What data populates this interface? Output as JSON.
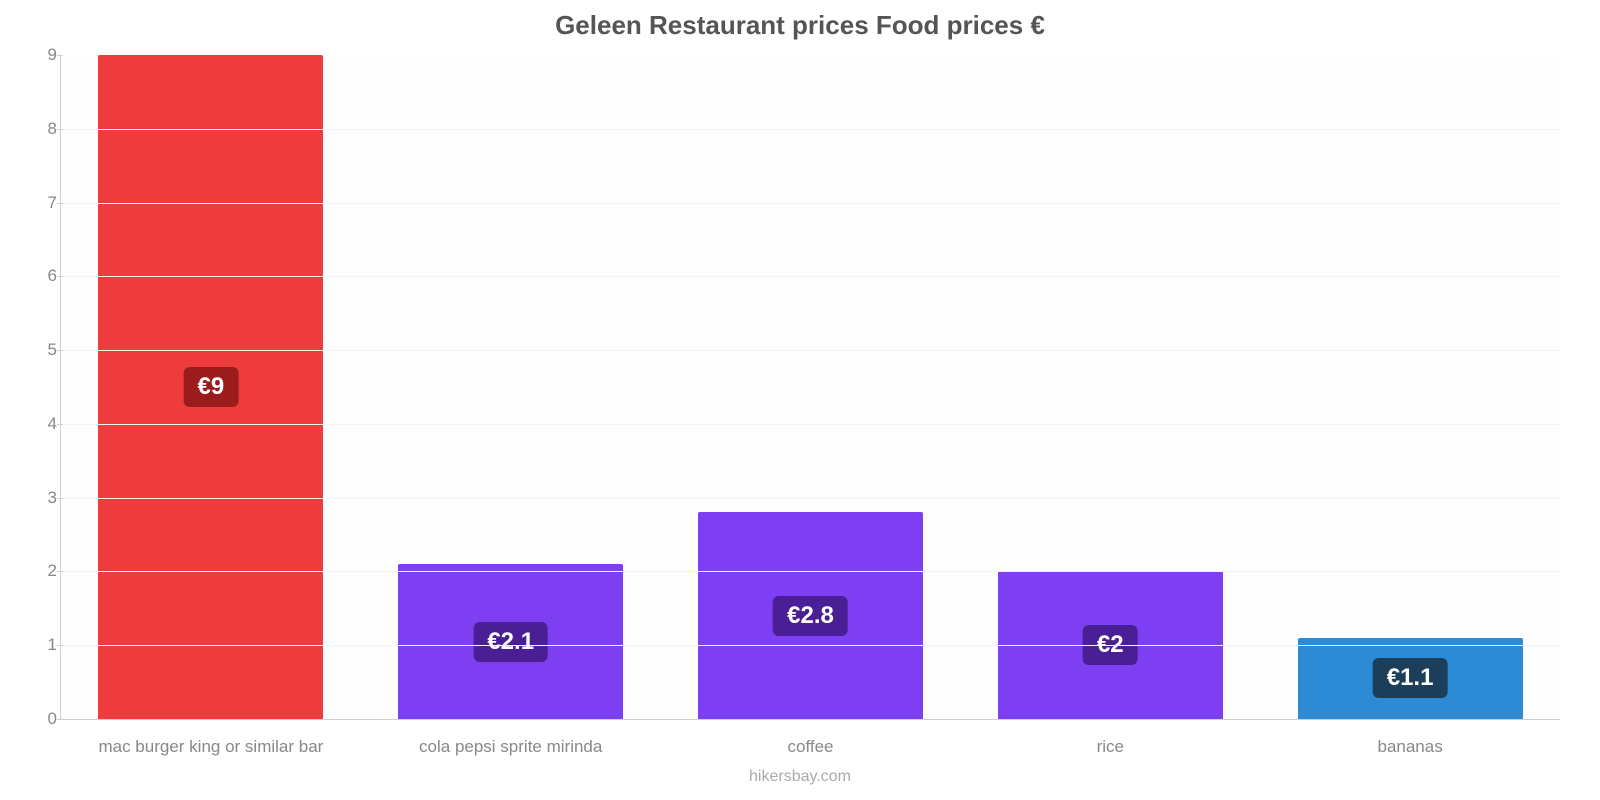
{
  "chart": {
    "type": "bar",
    "title": "Geleen Restaurant prices Food prices €",
    "title_fontsize": 26,
    "title_color": "#555555",
    "background_color": "#fdfdfd",
    "grid_color": "#f4f4f4",
    "axis_color": "#cfcfcf",
    "tick_color": "#888888",
    "tick_fontsize": 17,
    "xlabel_fontsize": 17,
    "xlabel_color": "#888888",
    "value_label_fontsize": 24,
    "value_label_text_color": "#ffffff",
    "attribution": "hikersbay.com",
    "attribution_color": "#aaaaaa",
    "attribution_fontsize": 16,
    "bar_width_pct": 75,
    "ylim": [
      0,
      9
    ],
    "yticks": [
      0,
      1,
      2,
      3,
      4,
      5,
      6,
      7,
      8,
      9
    ],
    "categories": [
      "mac burger king or similar bar",
      "cola pepsi sprite mirinda",
      "coffee",
      "rice",
      "bananas"
    ],
    "values": [
      9,
      2.1,
      2.8,
      2,
      1.1
    ],
    "value_labels": [
      "€9",
      "€2.1",
      "€2.8",
      "€2",
      "€1.1"
    ],
    "bar_colors": [
      "#ee3b3b",
      "#7e3ff2",
      "#7e3ff2",
      "#7e3ff2",
      "#2d8bd6"
    ],
    "value_label_bg": [
      "#9a1c1c",
      "#4a1f96",
      "#4a1f96",
      "#4a1f96",
      "#1b3f5a"
    ]
  }
}
